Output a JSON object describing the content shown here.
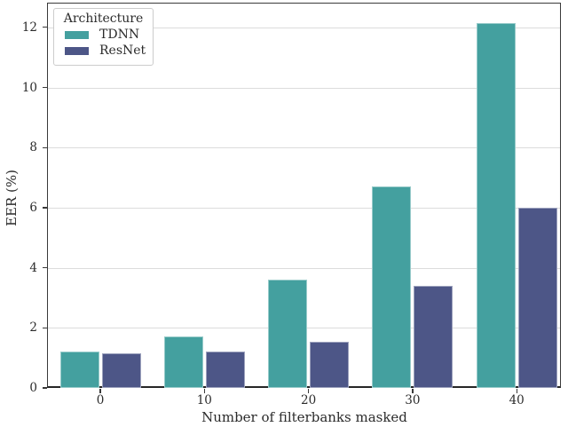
{
  "chart_data": {
    "type": "bar",
    "title": "",
    "xlabel": "Number of filterbanks masked",
    "ylabel": "EER (%)",
    "categories": [
      "0",
      "10",
      "20",
      "30",
      "40"
    ],
    "series": [
      {
        "name": "TDNN",
        "color": "#44a09f",
        "values": [
          1.2,
          1.7,
          3.6,
          6.7,
          12.15
        ]
      },
      {
        "name": "ResNet",
        "color": "#4d5687",
        "values": [
          1.15,
          1.2,
          1.55,
          3.4,
          6.0
        ]
      }
    ],
    "ylim": [
      0,
      12.8
    ],
    "yticks": [
      0,
      2,
      4,
      6,
      8,
      10,
      12
    ],
    "grid": true,
    "legend": {
      "title": "Architecture",
      "position": "upper-left"
    },
    "colors": {
      "spine": "#3a3a3a",
      "gridline": "#dcdcdc",
      "text": "#2b2b2b"
    }
  }
}
